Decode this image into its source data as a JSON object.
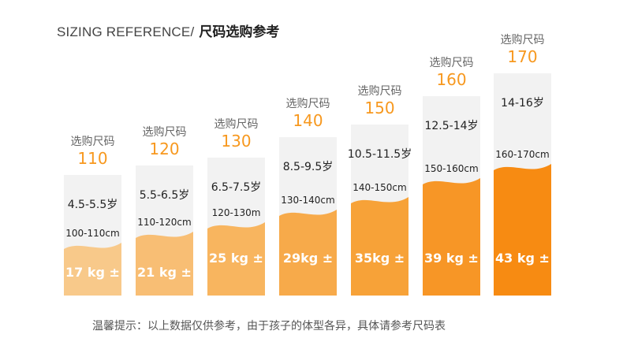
{
  "header": {
    "title_en": "SIZING REFERENCE/",
    "title_cn": "尺码选购参考"
  },
  "footer": {
    "note": "温馨提示：以上数据仅供参考，由于孩子的体型各异，具体请参考尺码表"
  },
  "colors": {
    "bar_fills": [
      "#f8c98a",
      "#f8be74",
      "#f8b55f",
      "#f7aa4a",
      "#f7a238",
      "#f79626",
      "#f78b12"
    ],
    "gray_fill": "#f2f2f2",
    "size_text": "#f7981e",
    "label_text": "#666666",
    "weight_text": "#ffffff"
  },
  "chart_data": {
    "type": "bar",
    "label": "选购尺码",
    "categories": [
      "110",
      "120",
      "130",
      "140",
      "150",
      "160",
      "170"
    ],
    "ages": [
      "4.5-5.5岁",
      "5.5-6.5岁",
      "6.5-7.5岁",
      "8.5-9.5岁",
      "10.5-11.5岁",
      "12.5-14岁",
      "14-16岁"
    ],
    "heights": [
      "100-110cm",
      "110-120cm",
      "120-130m",
      "130-140cm",
      "140-150cm",
      "150-160cm",
      "160-170cm"
    ],
    "weights": [
      "17 kg ±",
      "21 kg ±",
      "25 kg ±",
      "29kg ±",
      "35kg ±",
      "39 kg ±",
      "43 kg ±"
    ],
    "weight_values": [
      17,
      21,
      25,
      29,
      35,
      39,
      43
    ]
  }
}
